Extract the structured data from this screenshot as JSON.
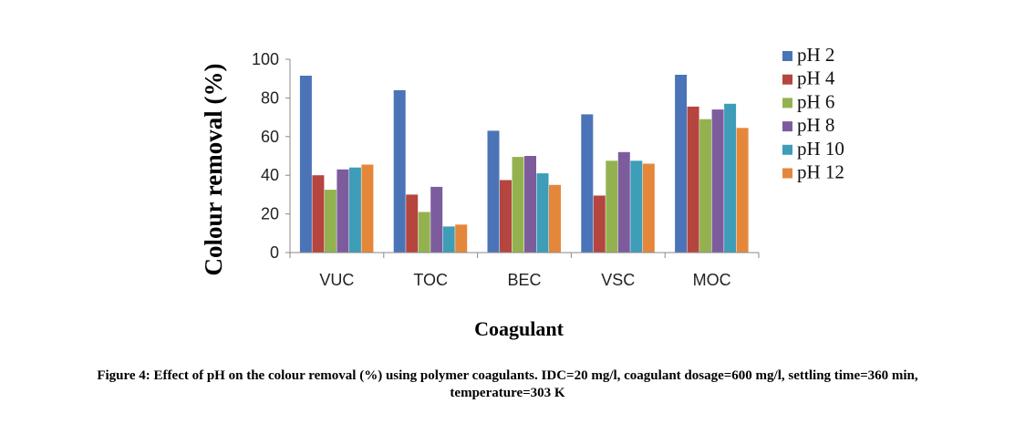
{
  "chart_data": {
    "type": "bar",
    "xlabel": "Coagulant",
    "ylabel": "Colour removal (%)",
    "ylim": [
      0,
      100
    ],
    "yticks": [
      0,
      20,
      40,
      60,
      80,
      100
    ],
    "grid": false,
    "legend_position": "right",
    "categories": [
      "VUC",
      "TOC",
      "BEC",
      "VSC",
      "MOC"
    ],
    "series": [
      {
        "name": "pH 2",
        "color": "#4A74B7",
        "values": [
          91.5,
          84,
          63,
          71.5,
          92
        ]
      },
      {
        "name": "pH 4",
        "color": "#B5453F",
        "values": [
          40,
          30,
          37.5,
          29.5,
          75.5
        ]
      },
      {
        "name": "pH 6",
        "color": "#93B24F",
        "values": [
          32.5,
          21,
          49.5,
          47.5,
          69
        ]
      },
      {
        "name": "pH 8",
        "color": "#7D5C9E",
        "values": [
          43,
          34,
          50,
          52,
          74
        ]
      },
      {
        "name": "pH 10",
        "color": "#3E9DB7",
        "values": [
          44,
          13.5,
          41,
          47.5,
          77
        ]
      },
      {
        "name": "pH 12",
        "color": "#E5873B",
        "values": [
          45.5,
          14.5,
          35,
          46,
          64.5
        ]
      }
    ]
  },
  "caption": {
    "line1": "Figure 4: Effect of pH on the colour removal (%) using polymer coagulants. IDC=20 mg/l, coagulant dosage=600 mg/l, settling time=360 min,",
    "line2": "temperature=303 K"
  }
}
